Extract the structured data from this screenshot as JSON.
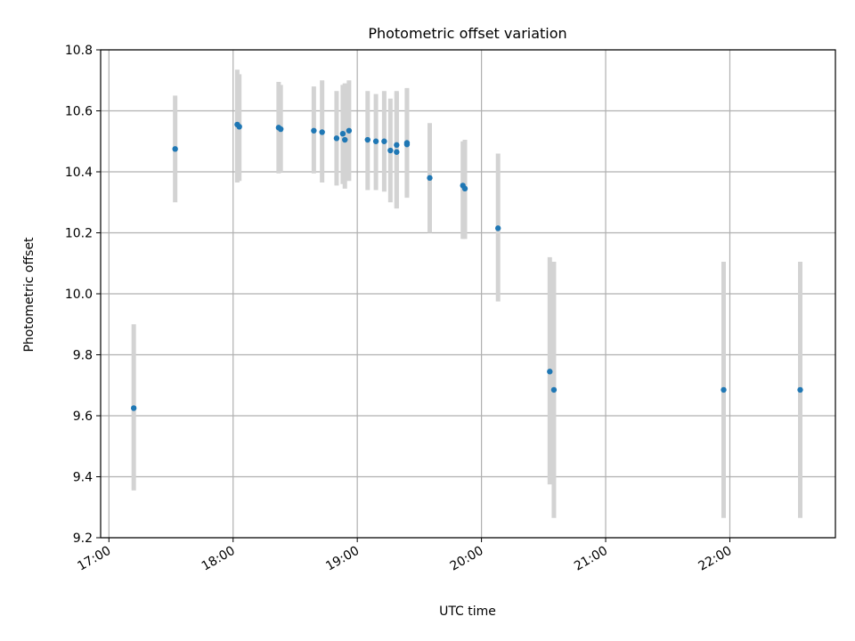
{
  "chart_data": {
    "type": "scatter",
    "title": "Photometric offset variation",
    "xlabel": "UTC time",
    "ylabel": "Photometric offset",
    "xlim": [
      "16:56",
      "22:51"
    ],
    "ylim": [
      9.2,
      10.8
    ],
    "x_ticks": [
      "17:00",
      "18:00",
      "19:00",
      "20:00",
      "21:00",
      "22:00"
    ],
    "y_ticks": [
      9.2,
      9.4,
      9.6,
      9.8,
      10.0,
      10.2,
      10.4,
      10.6,
      10.8
    ],
    "grid": true,
    "colors": {
      "point": "#1f77b4",
      "errorbar": "#d3d3d3",
      "grid": "#b0b0b0"
    },
    "points": [
      {
        "x": "17:12",
        "y": 9.625,
        "ylo": 9.355,
        "yhi": 9.9
      },
      {
        "x": "17:32",
        "y": 10.475,
        "ylo": 10.3,
        "yhi": 10.65
      },
      {
        "x": "18:02",
        "y": 10.555,
        "ylo": 10.365,
        "yhi": 10.735
      },
      {
        "x": "18:03",
        "y": 10.548,
        "ylo": 10.37,
        "yhi": 10.72
      },
      {
        "x": "18:22",
        "y": 10.545,
        "ylo": 10.395,
        "yhi": 10.695
      },
      {
        "x": "18:23",
        "y": 10.54,
        "ylo": 10.4,
        "yhi": 10.685
      },
      {
        "x": "18:39",
        "y": 10.535,
        "ylo": 10.395,
        "yhi": 10.68
      },
      {
        "x": "18:43",
        "y": 10.53,
        "ylo": 10.365,
        "yhi": 10.7
      },
      {
        "x": "18:50",
        "y": 10.51,
        "ylo": 10.355,
        "yhi": 10.665
      },
      {
        "x": "18:53",
        "y": 10.525,
        "ylo": 10.36,
        "yhi": 10.685
      },
      {
        "x": "18:54",
        "y": 10.505,
        "ylo": 10.345,
        "yhi": 10.69
      },
      {
        "x": "18:56",
        "y": 10.535,
        "ylo": 10.37,
        "yhi": 10.7
      },
      {
        "x": "19:05",
        "y": 10.505,
        "ylo": 10.34,
        "yhi": 10.665
      },
      {
        "x": "19:09",
        "y": 10.5,
        "ylo": 10.34,
        "yhi": 10.655
      },
      {
        "x": "19:13",
        "y": 10.5,
        "ylo": 10.335,
        "yhi": 10.665
      },
      {
        "x": "19:16",
        "y": 10.47,
        "ylo": 10.3,
        "yhi": 10.64
      },
      {
        "x": "19:19",
        "y": 10.488,
        "ylo": 10.28,
        "yhi": 10.665
      },
      {
        "x": "19:19",
        "y": 10.465,
        "ylo": 10.28,
        "yhi": 10.66
      },
      {
        "x": "19:24",
        "y": 10.495,
        "ylo": 10.315,
        "yhi": 10.675
      },
      {
        "x": "19:24",
        "y": 10.49,
        "ylo": 10.32,
        "yhi": 10.67
      },
      {
        "x": "19:35",
        "y": 10.38,
        "ylo": 10.2,
        "yhi": 10.56
      },
      {
        "x": "19:51",
        "y": 10.355,
        "ylo": 10.18,
        "yhi": 10.5
      },
      {
        "x": "19:52",
        "y": 10.345,
        "ylo": 10.18,
        "yhi": 10.505
      },
      {
        "x": "20:08",
        "y": 10.215,
        "ylo": 9.975,
        "yhi": 10.46
      },
      {
        "x": "20:33",
        "y": 9.745,
        "ylo": 9.375,
        "yhi": 10.12
      },
      {
        "x": "20:35",
        "y": 9.685,
        "ylo": 9.265,
        "yhi": 10.105
      },
      {
        "x": "21:57",
        "y": 9.685,
        "ylo": 9.265,
        "yhi": 10.105
      },
      {
        "x": "22:34",
        "y": 9.685,
        "ylo": 9.265,
        "yhi": 10.105
      }
    ]
  }
}
